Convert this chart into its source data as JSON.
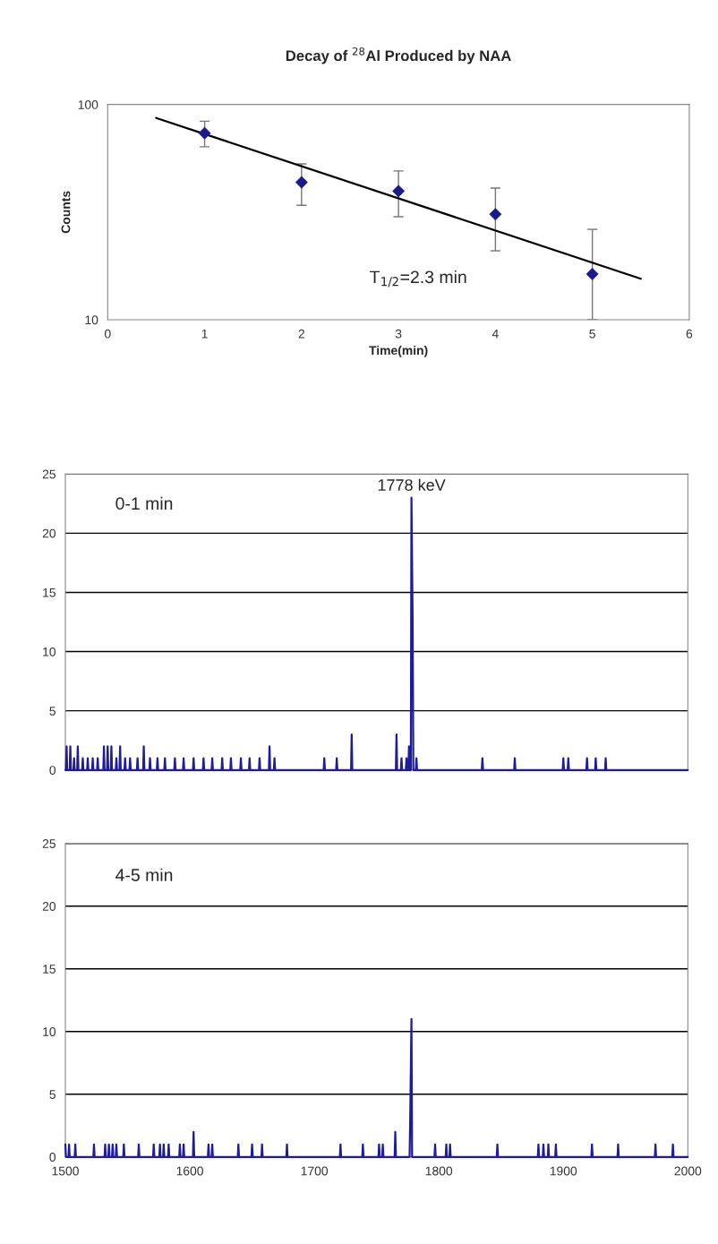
{
  "chart_data": [
    {
      "type": "scatter",
      "title": "Decay of $^{28}$Al Produced by NAA",
      "xlabel": "Time(min)",
      "ylabel": "Counts",
      "log": "y",
      "xlim": [
        0,
        6
      ],
      "xticks": [
        0,
        1,
        2,
        3,
        4,
        5,
        6
      ],
      "ylim": [
        10,
        100
      ],
      "yticks": [
        10,
        100
      ],
      "annotations": [
        "T$_{1/2}$=2.3 min"
      ],
      "series": [
        {
          "type": "scatter",
          "color": "#1a1a8c",
          "marker": "diamond",
          "x": [
            1,
            2,
            3,
            4,
            5
          ],
          "values": [
            73.6,
            43.5,
            39.6,
            30.9,
            16.3
          ],
          "errors": [
            10,
            9.5,
            9.5,
            10,
            [
              10,
              26.3
            ]
          ]
        },
        {
          "type": "line",
          "color": "#000000",
          "marker": "none",
          "line_style": "solid",
          "x": [
            0.5,
            5.5
          ],
          "values": [
            86.6,
            15.5
          ]
        }
      ]
    },
    {
      "type": "line",
      "annotations": [
        "0-1 min",
        {
          "text": "1778 keV",
          "x": 1778,
          "y": 23
        }
      ],
      "xlim": [
        1500,
        2000
      ],
      "xticks": [
        1500,
        1600,
        1700,
        1800,
        1900,
        2000
      ],
      "ylim": [
        0,
        25
      ],
      "yticks": [
        0,
        5,
        10,
        15,
        20,
        25
      ],
      "grid": "y",
      "tick_labels": "y",
      "series": [
        {
          "color": "#1c1c9c",
          "x": [
            1500,
            1500.5,
            1501,
            1501.5,
            1503.5,
            1504,
            1504.5,
            1506.5,
            1507,
            1507.5,
            1509.5,
            1510,
            1510.5,
            1513.5,
            1514,
            1514.5,
            1517.5,
            1518,
            1518.5,
            1521.5,
            1522,
            1522.5,
            1525.5,
            1526,
            1526.5,
            1530.5,
            1531,
            1531.5,
            1533.5,
            1534,
            1534.5,
            1536.5,
            1537,
            1537.5,
            1540.5,
            1541,
            1541.5,
            1543.5,
            1544,
            1544.5,
            1547.5,
            1548,
            1548.5,
            1551.5,
            1552,
            1552.5,
            1557.5,
            1558,
            1558.5,
            1562.5,
            1563,
            1563.5,
            1567.5,
            1568,
            1568.5,
            1573.5,
            1574,
            1574.5,
            1579.5,
            1580,
            1580.5,
            1587.5,
            1588,
            1588.5,
            1594.5,
            1595,
            1595.5,
            1602.5,
            1603,
            1603.5,
            1610.5,
            1611,
            1611.5,
            1617.5,
            1618,
            1618.5,
            1625.5,
            1626,
            1626.5,
            1632.5,
            1633,
            1633.5,
            1640.5,
            1641,
            1641.5,
            1647.5,
            1648,
            1648.5,
            1655.5,
            1656,
            1656.5,
            1663.5,
            1664,
            1664.5,
            1667.5,
            1668,
            1668.5,
            1707.5,
            1708,
            1708.5,
            1717.5,
            1718,
            1718.5,
            1729.5,
            1730,
            1730.5,
            1765.5,
            1766,
            1766.5,
            1769.5,
            1770,
            1770.5,
            1773.5,
            1774,
            1774.5,
            1775.5,
            1776,
            1776.5,
            1777.5,
            1778,
            1779,
            1779.5,
            1781.5,
            1782,
            1782.5,
            1834.5,
            1835,
            1835.5,
            1860.5,
            1861,
            1861.5,
            1899.5,
            1900,
            1900.5,
            1903.5,
            1904,
            1904.5,
            1918.5,
            1919,
            1919.5,
            1925.5,
            1926,
            1926.5,
            1933.5,
            1934,
            1934.5,
            2000
          ],
          "values": [
            0,
            0,
            2,
            0,
            0,
            2,
            0,
            0,
            1,
            0,
            0,
            2,
            0,
            0,
            1,
            0,
            0,
            1,
            0,
            0,
            1,
            0,
            0,
            1,
            0,
            0,
            2,
            0,
            0,
            2,
            0,
            0,
            2,
            0,
            0,
            1,
            0,
            0,
            2,
            0,
            0,
            1,
            0,
            0,
            1,
            0,
            0,
            1,
            0,
            0,
            2,
            0,
            0,
            1,
            0,
            0,
            1,
            0,
            0,
            1,
            0,
            0,
            1,
            0,
            0,
            1,
            0,
            0,
            1,
            0,
            0,
            1,
            0,
            0,
            1,
            0,
            0,
            1,
            0,
            0,
            1,
            0,
            0,
            1,
            0,
            0,
            1,
            0,
            0,
            1,
            0,
            0,
            2,
            0,
            0,
            1,
            0,
            0,
            1,
            0,
            0,
            1,
            0,
            0,
            3,
            0,
            0,
            3,
            0,
            0,
            1,
            0,
            0,
            1,
            0,
            0,
            2,
            0,
            0,
            23,
            12,
            0,
            0,
            1,
            0,
            0,
            1,
            0,
            0,
            1,
            0,
            0,
            1,
            0,
            0,
            1,
            0,
            0,
            1,
            0,
            0,
            1,
            0,
            0,
            1,
            0,
            0
          ]
        }
      ]
    },
    {
      "type": "line",
      "annotations": [
        "4-5 min"
      ],
      "xlim": [
        1500,
        2000
      ],
      "xticks": [
        1500,
        1600,
        1700,
        1800,
        1900,
        2000
      ],
      "ylim": [
        0,
        25
      ],
      "yticks": [
        0,
        5,
        10,
        15,
        20,
        25
      ],
      "grid": "y",
      "series": [
        {
          "color": "#1c1c9c",
          "x": [
            1500,
            1500.5,
            1502.5,
            1503,
            1503.5,
            1507.5,
            1508,
            1508.5,
            1522.5,
            1523,
            1523.5,
            1531.5,
            1532,
            1532.5,
            1534.5,
            1535,
            1535.5,
            1537.5,
            1538,
            1538.5,
            1540.5,
            1541,
            1541.5,
            1546.5,
            1547,
            1547.5,
            1558.5,
            1559,
            1559.5,
            1570.5,
            1571,
            1571.5,
            1575.5,
            1576,
            1576.5,
            1578.5,
            1579,
            1579.5,
            1582.5,
            1583,
            1583.5,
            1591.5,
            1592,
            1592.5,
            1594.5,
            1595,
            1595.5,
            1602.5,
            1603,
            1603.5,
            1614.5,
            1615,
            1615.5,
            1617.5,
            1618,
            1618.5,
            1638.5,
            1639,
            1639.5,
            1649.5,
            1650,
            1650.5,
            1657.5,
            1658,
            1658.5,
            1677.5,
            1678,
            1678.5,
            1720.5,
            1721,
            1721.5,
            1738.5,
            1739,
            1739.5,
            1751.5,
            1752,
            1752.5,
            1754.5,
            1755,
            1755.5,
            1764.5,
            1765,
            1765.5,
            1776.5,
            1777,
            1778,
            1778.5,
            1796.5,
            1797,
            1797.5,
            1805.5,
            1806,
            1806.5,
            1808.5,
            1809,
            1809.5,
            1846.5,
            1847,
            1847.5,
            1879.5,
            1880,
            1880.5,
            1883.5,
            1884,
            1884.5,
            1887.5,
            1888,
            1888.5,
            1893.5,
            1894,
            1894.5,
            1922.5,
            1923,
            1923.5,
            1943.5,
            1944,
            1944.5,
            1973.5,
            1974,
            1974.5,
            1987.5,
            1988,
            1988.5,
            2000
          ],
          "values": [
            1,
            0,
            0,
            1,
            0,
            0,
            1,
            0,
            0,
            1,
            0,
            0,
            1,
            0,
            0,
            1,
            0,
            0,
            1,
            0,
            0,
            1,
            0,
            0,
            1,
            0,
            0,
            1,
            0,
            0,
            1,
            0,
            0,
            1,
            0,
            0,
            1,
            0,
            0,
            1,
            0,
            0,
            1,
            0,
            0,
            1,
            0,
            0,
            2,
            0,
            0,
            1,
            0,
            0,
            1,
            0,
            0,
            1,
            0,
            0,
            1,
            0,
            0,
            1,
            0,
            0,
            1,
            0,
            0,
            1,
            0,
            0,
            1,
            0,
            0,
            1,
            0,
            0,
            1,
            0,
            0,
            2,
            0,
            0,
            3,
            11,
            0,
            0,
            1,
            0,
            0,
            1,
            0,
            0,
            1,
            0,
            0,
            1,
            0,
            0,
            1,
            0,
            0,
            1,
            0,
            0,
            1,
            0,
            0,
            1,
            0,
            0,
            1,
            0,
            0,
            1,
            0,
            0,
            1,
            0,
            0,
            1,
            0,
            0
          ]
        }
      ]
    }
  ]
}
